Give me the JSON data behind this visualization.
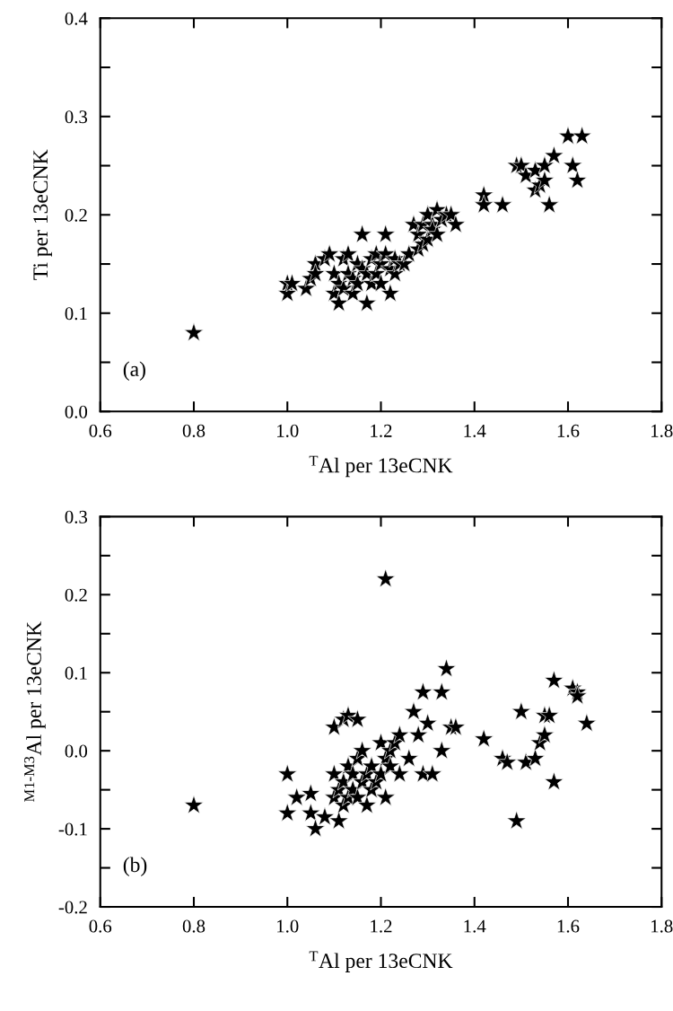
{
  "chart_data": [
    {
      "type": "scatter",
      "xlabel": "$^{T}$Al per 13eCNK",
      "ylabel": "Ti per 13eCNK",
      "marker": "star",
      "annotations": [
        "(a)"
      ],
      "xlim": [
        0.6,
        1.8
      ],
      "ylim": [
        0.0,
        0.4
      ],
      "xticks": [
        0.6,
        0.8,
        {
          "value": 1.0,
          "label": "1.0"
        },
        1.2,
        1.4,
        1.6,
        1.8
      ],
      "yticks": [
        {
          "value": 0.0,
          "label": "0.0"
        },
        {
          "value": 0.05,
          "label": null
        },
        0.1,
        {
          "value": 0.15,
          "label": null
        },
        0.2,
        {
          "value": 0.25,
          "label": null
        },
        0.3,
        {
          "value": 0.35,
          "label": null
        },
        0.4
      ],
      "series": [
        {
          "color": "#000000",
          "x": [
            0.8,
            1.0,
            1.0,
            1.01,
            1.04,
            1.05,
            1.06,
            1.06,
            1.08,
            1.09,
            1.1,
            1.1,
            1.11,
            1.11,
            1.12,
            1.12,
            1.13,
            1.13,
            1.14,
            1.14,
            1.15,
            1.15,
            1.16,
            1.16,
            1.17,
            1.17,
            1.18,
            1.18,
            1.19,
            1.19,
            1.2,
            1.2,
            1.21,
            1.21,
            1.22,
            1.22,
            1.23,
            1.23,
            1.24,
            1.25,
            1.26,
            1.27,
            1.28,
            1.28,
            1.29,
            1.29,
            1.3,
            1.3,
            1.31,
            1.31,
            1.32,
            1.32,
            1.33,
            1.34,
            1.35,
            1.36,
            1.42,
            1.42,
            1.46,
            1.49,
            1.5,
            1.51,
            1.53,
            1.53,
            1.54,
            1.55,
            1.55,
            1.56,
            1.57,
            1.6,
            1.61,
            1.62,
            1.63
          ],
          "values": [
            0.08,
            0.13,
            0.12,
            0.13,
            0.125,
            0.135,
            0.15,
            0.14,
            0.155,
            0.16,
            0.12,
            0.14,
            0.11,
            0.13,
            0.155,
            0.125,
            0.16,
            0.14,
            0.135,
            0.12,
            0.15,
            0.13,
            0.18,
            0.145,
            0.11,
            0.14,
            0.155,
            0.13,
            0.16,
            0.14,
            0.15,
            0.13,
            0.18,
            0.16,
            0.145,
            0.12,
            0.155,
            0.14,
            0.15,
            0.15,
            0.16,
            0.19,
            0.18,
            0.165,
            0.19,
            0.17,
            0.2,
            0.175,
            0.19,
            0.185,
            0.205,
            0.18,
            0.195,
            0.2,
            0.2,
            0.19,
            0.22,
            0.21,
            0.21,
            0.25,
            0.25,
            0.24,
            0.245,
            0.225,
            0.23,
            0.25,
            0.235,
            0.21,
            0.26,
            0.28,
            0.25,
            0.235,
            0.28
          ]
        }
      ]
    },
    {
      "type": "scatter",
      "xlabel": "$^{T}$Al per 13eCNK",
      "ylabel": "$^{M1‐M3}$Al per 13eCNK",
      "marker": "star",
      "annotations": [
        "(b)"
      ],
      "xlim": [
        0.6,
        1.8
      ],
      "ylim": [
        -0.2,
        0.3
      ],
      "xticks": [
        0.6,
        0.8,
        {
          "value": 1.0,
          "label": "1.0"
        },
        1.2,
        1.4,
        1.6,
        1.8
      ],
      "yticks": [
        -0.2,
        {
          "value": -0.15,
          "label": null
        },
        -0.1,
        {
          "value": -0.05,
          "label": null
        },
        {
          "value": 0.0,
          "label": "0.0"
        },
        {
          "value": 0.05,
          "label": null
        },
        0.1,
        {
          "value": 0.15,
          "label": null
        },
        0.2,
        {
          "value": 0.25,
          "label": null
        },
        0.3
      ],
      "series": [
        {
          "color": "#000000",
          "x": [
            0.8,
            1.0,
            1.0,
            1.02,
            1.05,
            1.05,
            1.06,
            1.08,
            1.1,
            1.11,
            1.1,
            1.12,
            1.13,
            1.15,
            1.21,
            1.1,
            1.11,
            1.12,
            1.12,
            1.13,
            1.13,
            1.14,
            1.14,
            1.15,
            1.15,
            1.16,
            1.16,
            1.17,
            1.17,
            1.18,
            1.18,
            1.19,
            1.2,
            1.2,
            1.21,
            1.21,
            1.22,
            1.22,
            1.23,
            1.24,
            1.24,
            1.26,
            1.27,
            1.28,
            1.29,
            1.3,
            1.33,
            1.34,
            1.35,
            1.36,
            1.33,
            1.29,
            1.31,
            1.42,
            1.46,
            1.47,
            1.5,
            1.51,
            1.53,
            1.55,
            1.56,
            1.54,
            1.55,
            1.49,
            1.57,
            1.57,
            1.61,
            1.62,
            1.62,
            1.64
          ],
          "values": [
            -0.07,
            -0.03,
            -0.08,
            -0.06,
            -0.055,
            -0.08,
            -0.1,
            -0.085,
            -0.06,
            -0.09,
            0.03,
            0.04,
            0.045,
            0.04,
            0.22,
            -0.03,
            -0.05,
            -0.07,
            -0.04,
            -0.06,
            -0.02,
            -0.05,
            -0.03,
            -0.06,
            -0.01,
            -0.04,
            0.0,
            -0.07,
            -0.03,
            -0.05,
            -0.02,
            -0.04,
            0.01,
            -0.03,
            -0.01,
            -0.06,
            -0.02,
            0.0,
            0.01,
            -0.03,
            0.02,
            -0.01,
            0.05,
            0.02,
            0.075,
            0.035,
            0.075,
            0.105,
            0.03,
            0.03,
            0.0,
            -0.03,
            -0.03,
            0.015,
            -0.01,
            -0.015,
            0.05,
            -0.015,
            -0.01,
            0.045,
            0.045,
            0.01,
            0.02,
            -0.09,
            -0.04,
            0.09,
            0.08,
            0.075,
            0.07,
            0.035
          ]
        }
      ]
    }
  ]
}
